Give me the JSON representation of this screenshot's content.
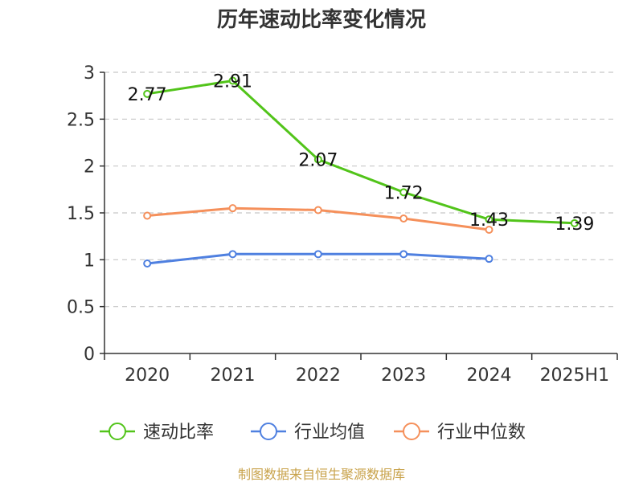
{
  "chart_data": {
    "type": "line",
    "title": "历年速动比率变化情况",
    "categories": [
      "2020",
      "2021",
      "2022",
      "2023",
      "2024",
      "2025H1"
    ],
    "ylim": [
      0,
      3
    ],
    "yticks": [
      "0",
      "0.5",
      "1",
      "1.5",
      "2",
      "2.5",
      "3"
    ],
    "grid": true,
    "legend_position": "bottom",
    "series": [
      {
        "name": "速动比率",
        "color": "#52c41a",
        "values": [
          2.77,
          2.91,
          2.07,
          1.72,
          1.43,
          1.39
        ],
        "labels": [
          "2.77",
          "2.91",
          "2.07",
          "1.72",
          "1.43",
          "1.39"
        ],
        "show_labels": true
      },
      {
        "name": "行业均值",
        "color": "#4f80e0",
        "values": [
          0.96,
          1.06,
          1.06,
          1.06,
          1.01,
          null
        ],
        "show_labels": false
      },
      {
        "name": "行业中位数",
        "color": "#f5905b",
        "values": [
          1.47,
          1.55,
          1.53,
          1.44,
          1.32,
          null
        ],
        "show_labels": false
      }
    ]
  },
  "source_text": "制图数据来自恒生聚源数据库"
}
